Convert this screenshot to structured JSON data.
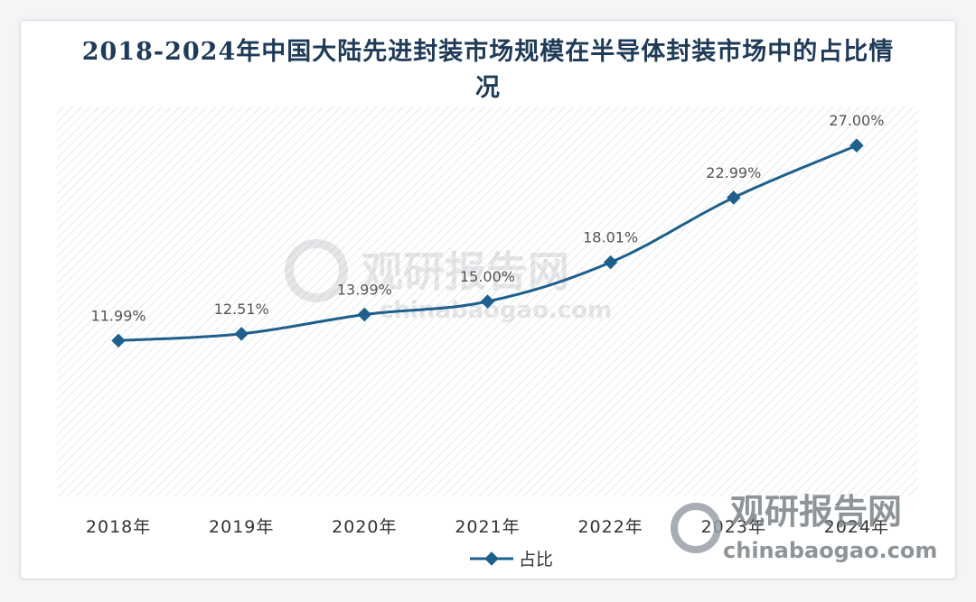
{
  "chart_data": {
    "type": "line",
    "title": "2018-2024年中国大陆先进封装市场规模在半导体封装市场中的占比情况",
    "categories": [
      "2018年",
      "2019年",
      "2020年",
      "2021年",
      "2022年",
      "2023年",
      "2024年"
    ],
    "series": [
      {
        "name": "占比",
        "values": [
          11.99,
          12.51,
          13.99,
          15.0,
          18.01,
          22.99,
          27.0
        ],
        "labels": [
          "11.99%",
          "12.51%",
          "13.99%",
          "15.00%",
          "18.01%",
          "22.99%",
          "27.00%"
        ],
        "color": "#1e5f8c"
      }
    ],
    "ylim": [
      0,
      30
    ],
    "legend": "bottom-center",
    "grid": false
  },
  "watermark": {
    "text_cn": "观研报告网",
    "text_en": "chinabaogao.com"
  }
}
